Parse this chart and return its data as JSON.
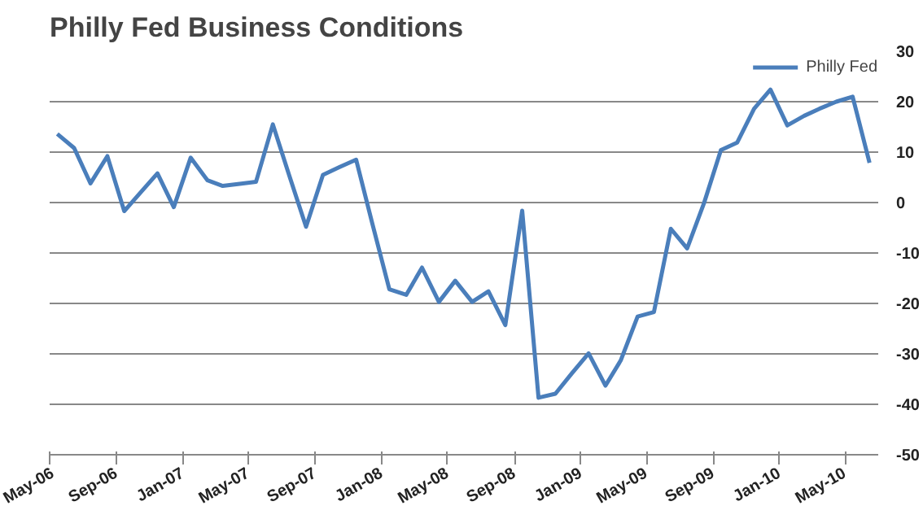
{
  "chart_data": {
    "type": "line",
    "title": "Philly Fed Business  Conditions",
    "x": [
      "2006-05-15",
      "2006-06-15",
      "2006-07-15",
      "2006-08-15",
      "2006-09-15",
      "2006-10-15",
      "2006-11-15",
      "2006-12-15",
      "2007-01-15",
      "2007-02-15",
      "2007-03-15",
      "2007-04-15",
      "2007-05-15",
      "2007-06-15",
      "2007-07-15",
      "2007-08-15",
      "2007-09-15",
      "2007-10-15",
      "2007-11-15",
      "2007-12-15",
      "2008-01-15",
      "2008-02-15",
      "2008-03-15",
      "2008-04-15",
      "2008-05-15",
      "2008-06-15",
      "2008-07-15",
      "2008-08-15",
      "2008-09-15",
      "2008-10-15",
      "2008-11-15",
      "2008-12-15",
      "2009-01-15",
      "2009-02-15",
      "2009-03-15",
      "2009-04-15",
      "2009-05-15",
      "2009-06-15",
      "2009-07-15",
      "2009-08-15",
      "2009-09-15",
      "2009-10-15",
      "2009-11-15",
      "2009-12-15",
      "2010-01-15",
      "2010-02-15",
      "2010-03-15",
      "2010-04-15",
      "2010-05-15",
      "2010-06-15"
    ],
    "series": [
      {
        "name": "Philly Fed",
        "color": "#4a7ebb",
        "values": [
          13.6,
          10.8,
          3.8,
          9.2,
          -1.7,
          2.0,
          5.8,
          -0.9,
          8.9,
          4.4,
          3.3,
          3.7,
          4.1,
          15.5,
          5.4,
          -4.8,
          5.5,
          7.0,
          8.5,
          -4.3,
          -17.2,
          -18.3,
          -12.9,
          -19.7,
          -15.5,
          -19.7,
          -17.6,
          -24.3,
          -1.6,
          -38.7,
          -37.9,
          -33.9,
          -29.9,
          -36.3,
          -31.3,
          -22.6,
          -21.7,
          -5.2,
          -9.1,
          -0.1,
          10.4,
          11.9,
          18.6,
          22.4,
          15.3,
          17.2,
          18.6,
          20.0,
          21.0,
          7.9
        ]
      }
    ],
    "xlim": [
      "2006-05",
      "2010-07"
    ],
    "xticks": [
      {
        "value": "2006-05",
        "label": "May-06"
      },
      {
        "value": "2006-09",
        "label": "Sep-06"
      },
      {
        "value": "2007-01",
        "label": "Jan-07"
      },
      {
        "value": "2007-05",
        "label": "May-07"
      },
      {
        "value": "2007-09",
        "label": "Sep-07"
      },
      {
        "value": "2008-01",
        "label": "Jan-08"
      },
      {
        "value": "2008-05",
        "label": "May-08"
      },
      {
        "value": "2008-09",
        "label": "Sep-08"
      },
      {
        "value": "2009-01",
        "label": "Jan-09"
      },
      {
        "value": "2009-05",
        "label": "May-09"
      },
      {
        "value": "2009-09",
        "label": "Sep-09"
      },
      {
        "value": "2010-01",
        "label": "Jan-10"
      },
      {
        "value": "2010-05",
        "label": "May-10"
      }
    ],
    "ylim": [
      -50,
      30
    ],
    "yticks": [
      -50,
      -40,
      -30,
      -20,
      -10,
      0,
      10,
      20,
      30
    ],
    "grid": "y",
    "legend": "top right",
    "marker": "none",
    "line_style": "solid"
  }
}
